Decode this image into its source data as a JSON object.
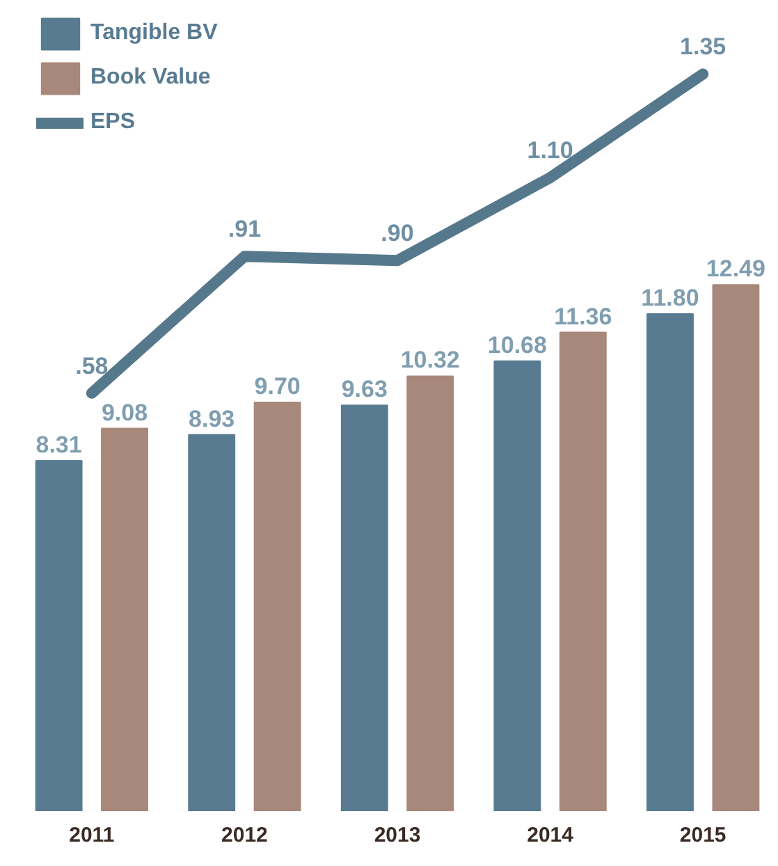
{
  "chart_data": {
    "type": "bar",
    "categories": [
      "2011",
      "2012",
      "2013",
      "2014",
      "2015"
    ],
    "series": [
      {
        "name": "Tangible BV",
        "color": "#587b91",
        "values": [
          8.31,
          8.93,
          9.63,
          10.68,
          11.8
        ],
        "value_labels": [
          "8.31",
          "8.93",
          "9.63",
          "10.68",
          "11.80"
        ]
      },
      {
        "name": "Book Value",
        "color": "#a8887a",
        "values": [
          9.08,
          9.7,
          10.32,
          11.36,
          12.49
        ],
        "value_labels": [
          "9.08",
          "9.70",
          "10.32",
          "11.36",
          "12.49"
        ]
      },
      {
        "name": "EPS",
        "type": "line",
        "axis": "y2",
        "color": "#56788c",
        "values": [
          0.58,
          0.91,
          0.9,
          1.1,
          1.35
        ],
        "value_labels": [
          ".58",
          ".91",
          ".90",
          "1.10",
          "1.35"
        ]
      }
    ],
    "legend": "top left",
    "tick_labels": "x"
  }
}
